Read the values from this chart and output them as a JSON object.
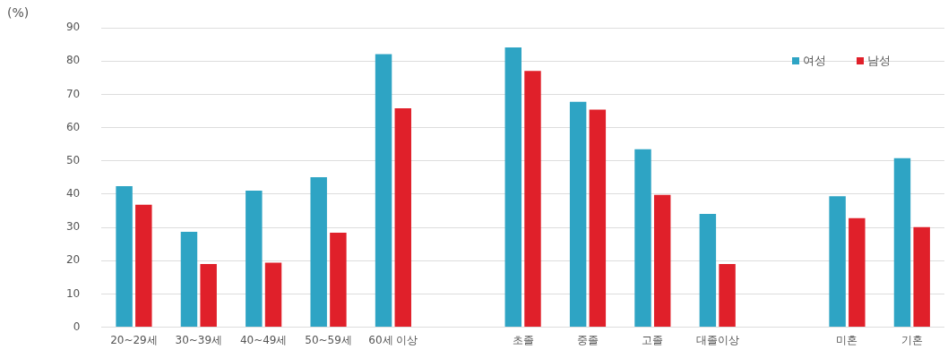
{
  "chart_data": {
    "type": "bar",
    "annotations": [
      "(%)"
    ],
    "categories": [
      "20~29세",
      "30~39세",
      "40~49세",
      "50~59세",
      "60세 이상",
      null,
      "초졸",
      "중졸",
      "고졸",
      "대졸이상",
      null,
      "미혼",
      "기혼"
    ],
    "series": [
      {
        "name": "여성",
        "color": "#2ea4c4",
        "values": [
          42.4,
          28.7,
          41.1,
          45.1,
          82.1,
          null,
          84.1,
          67.8,
          53.5,
          34.1,
          null,
          39.4,
          50.8
        ]
      },
      {
        "name": "남성",
        "color": "#e0202a",
        "values": [
          36.8,
          19.0,
          19.4,
          28.4,
          65.8,
          null,
          77.1,
          65.4,
          39.8,
          19.0,
          null,
          32.8,
          30.1
        ]
      }
    ],
    "ylim": [
      0,
      90
    ],
    "yticks": [
      0,
      10,
      20,
      30,
      40,
      50,
      60,
      70,
      80,
      90
    ],
    "grid": "y",
    "legend": "top right"
  }
}
